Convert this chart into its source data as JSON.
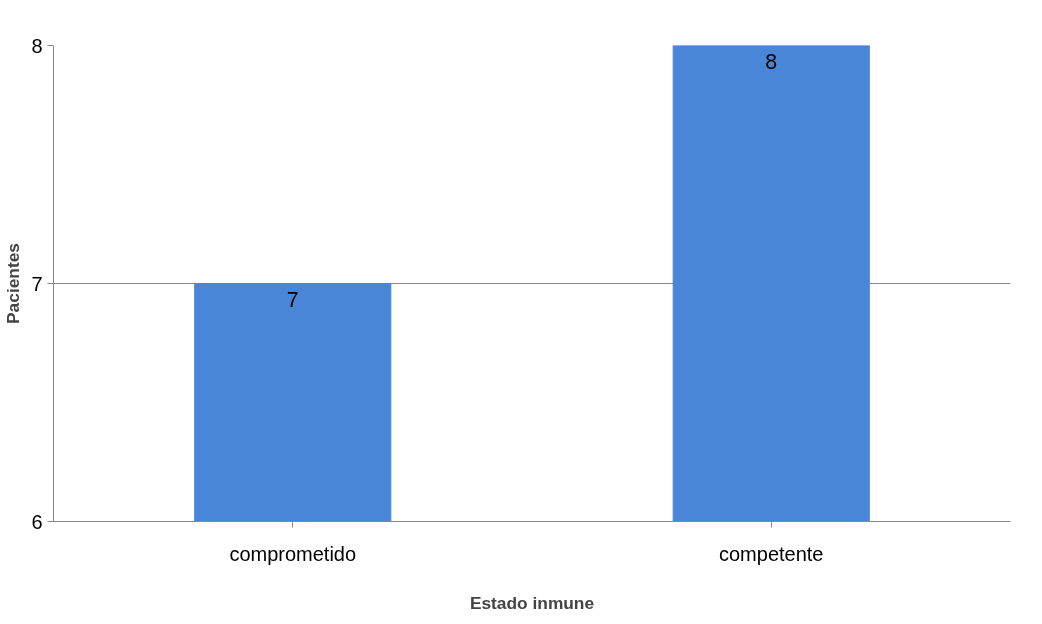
{
  "chart_data": {
    "type": "bar",
    "xlabel": "Estado inmune",
    "ylabel": "Pacientes",
    "categories": [
      "comprometido",
      "competente"
    ],
    "values": [
      7,
      8
    ],
    "color": "#4a86d8",
    "ylim": [
      6,
      8
    ],
    "yticks": [
      6,
      7,
      8
    ],
    "grid": "y",
    "data_labels": true
  }
}
